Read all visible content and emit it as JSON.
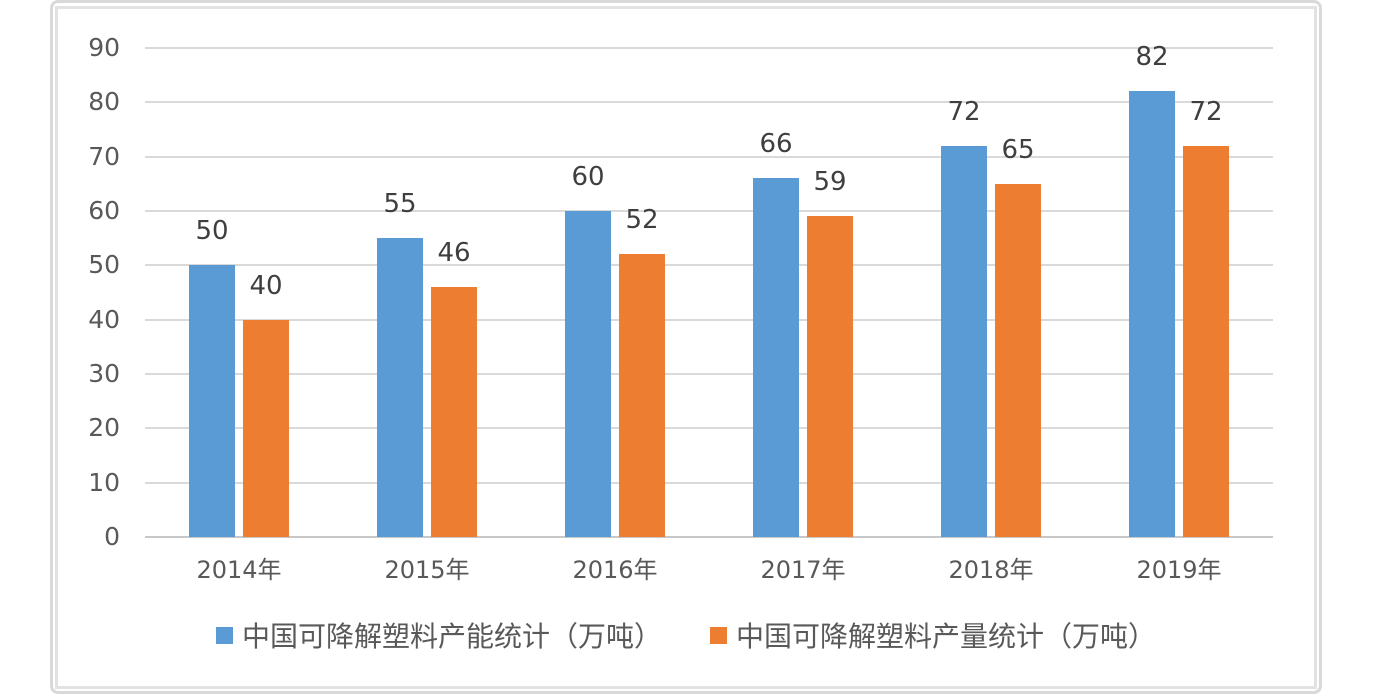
{
  "chart_data": {
    "type": "bar",
    "title": "",
    "xlabel": "",
    "ylabel": "",
    "categories": [
      "2014年",
      "2015年",
      "2016年",
      "2017年",
      "2018年",
      "2019年"
    ],
    "series": [
      {
        "name": "中国可降解塑料产能统计（万吨）",
        "color": "#5b9bd5",
        "values": [
          50,
          55,
          60,
          66,
          72,
          82
        ]
      },
      {
        "name": "中国可降解塑料产量统计（万吨）",
        "color": "#ed7d31",
        "values": [
          40,
          46,
          52,
          59,
          65,
          72
        ]
      }
    ],
    "ylim": [
      0,
      90
    ],
    "yticks": [
      0,
      10,
      20,
      30,
      40,
      50,
      60,
      70,
      80,
      90
    ],
    "grid": true,
    "gridline_color": "#d9d9d9",
    "axis_line_color": "#c8c8c8",
    "data_labels": true,
    "data_label_color": "#3f3f3f",
    "tick_label_color": "#595959",
    "legend_position": "bottom"
  }
}
